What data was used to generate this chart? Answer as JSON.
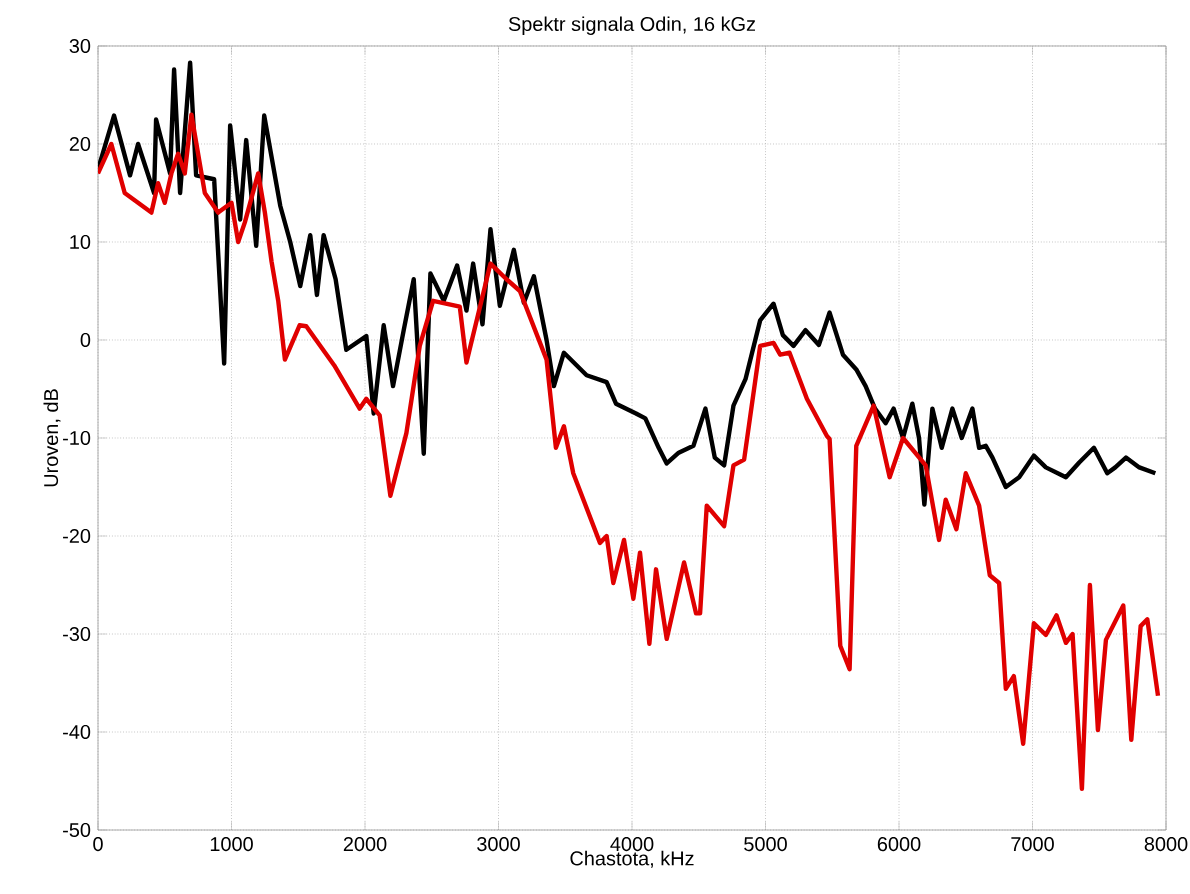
{
  "chart_data": {
    "type": "line",
    "title": "Spektr signala  Odin, 16 kGz",
    "xlabel": "Chastota, kHz",
    "ylabel": "Uroven, dB",
    "xlim": [
      0,
      8000
    ],
    "ylim": [
      -50,
      30
    ],
    "xticks": [
      0,
      1000,
      2000,
      3000,
      4000,
      5000,
      6000,
      7000,
      8000
    ],
    "yticks": [
      -50,
      -40,
      -30,
      -20,
      -10,
      0,
      10,
      20,
      30
    ],
    "grid": true,
    "series": [
      {
        "color": "#000000",
        "x": [
          0,
          120,
          240,
          300,
          420,
          435,
          540,
          570,
          615,
          690,
          735,
          870,
          945,
          990,
          1065,
          1110,
          1185,
          1245,
          1365,
          1440,
          1515,
          1590,
          1640,
          1690,
          1780,
          1860,
          2010,
          2065,
          2140,
          2210,
          2290,
          2365,
          2440,
          2490,
          2590,
          2690,
          2760,
          2810,
          2880,
          2940,
          3010,
          3115,
          3190,
          3265,
          3360,
          3415,
          3490,
          3660,
          3810,
          3880,
          4030,
          4100,
          4200,
          4260,
          4350,
          4460,
          4550,
          4620,
          4690,
          4760,
          4850,
          4960,
          5060,
          5130,
          5210,
          5300,
          5400,
          5480,
          5580,
          5680,
          5750,
          5820,
          5900,
          5960,
          6030,
          6100,
          6150,
          6190,
          6250,
          6320,
          6400,
          6470,
          6550,
          6600,
          6650,
          6700,
          6800,
          6900,
          7010,
          7100,
          7250,
          7350,
          7460,
          7560,
          7620,
          7700,
          7800,
          7920
        ],
        "values": [
          17.4,
          22.9,
          16.8,
          20,
          15,
          22.5,
          17,
          27.6,
          15,
          28.3,
          16.8,
          16.4,
          -2.4,
          21.9,
          12.3,
          20.4,
          9.6,
          22.9,
          13.7,
          10,
          5.5,
          10.7,
          4.6,
          10.7,
          6.2,
          -1,
          0.4,
          -7.5,
          1.5,
          -4.7,
          1,
          6.2,
          -11.6,
          6.8,
          4,
          7.6,
          3,
          7.8,
          1.6,
          11.3,
          3.5,
          9.2,
          3.8,
          6.5,
          0,
          -4.7,
          -1.3,
          -3.6,
          -4.3,
          -6.5,
          -7.5,
          -8,
          -11,
          -12.6,
          -11.5,
          -10.8,
          -7,
          -12,
          -12.8,
          -6.7,
          -4,
          2,
          3.7,
          0.5,
          -0.6,
          1,
          -0.5,
          2.8,
          -1.5,
          -3,
          -4.7,
          -7,
          -8.5,
          -7,
          -10,
          -6.5,
          -10,
          -16.8,
          -7,
          -11,
          -7,
          -10,
          -7,
          -11,
          -10.8,
          -12,
          -15,
          -14,
          -11.8,
          -13,
          -14,
          -12.5,
          -11,
          -13.6,
          -13,
          -12,
          -13,
          -13.6
        ]
      },
      {
        "color": "#e00000",
        "x": [
          0,
          100,
          200,
          300,
          400,
          450,
          500,
          550,
          600,
          650,
          700,
          750,
          800,
          900,
          1000,
          1050,
          1100,
          1200,
          1250,
          1300,
          1350,
          1400,
          1510,
          1560,
          1770,
          1960,
          2010,
          2110,
          2190,
          2310,
          2410,
          2510,
          2710,
          2760,
          2940,
          3060,
          3160,
          3360,
          3430,
          3490,
          3560,
          3760,
          3810,
          3860,
          3940,
          4010,
          4060,
          4130,
          4180,
          4260,
          4390,
          4480,
          4510,
          4560,
          4690,
          4760,
          4840,
          4960,
          5060,
          5110,
          5180,
          5310,
          5460,
          5480,
          5560,
          5630,
          5680,
          5810,
          5930,
          6030,
          6200,
          6300,
          6350,
          6430,
          6500,
          6600,
          6680,
          6750,
          6800,
          6860,
          6930,
          7010,
          7100,
          7180,
          7250,
          7300,
          7370,
          7430,
          7490,
          7550,
          7680,
          7740,
          7810,
          7860,
          7940
        ],
        "values": [
          17,
          20,
          15,
          14,
          13,
          16,
          14,
          17,
          19,
          17,
          23,
          19,
          15,
          13,
          14,
          10,
          12,
          17,
          13,
          8,
          4,
          -2,
          1.5,
          1.4,
          -2.6,
          -7,
          -6,
          -7.7,
          -15.9,
          -9.5,
          -0.6,
          4,
          3.4,
          -2.3,
          7.8,
          6.2,
          5,
          -2,
          -11,
          -8.8,
          -13.6,
          -20.7,
          -20,
          -24.8,
          -20.4,
          -26.4,
          -21.7,
          -31,
          -23.4,
          -30.5,
          -22.7,
          -27.9,
          -27.9,
          -16.9,
          -19,
          -12.8,
          -12.2,
          -0.6,
          -0.3,
          -1.5,
          -1.3,
          -6,
          -9.8,
          -10.1,
          -31.2,
          -33.6,
          -10.8,
          -6.7,
          -14,
          -10,
          -12.8,
          -20.4,
          -16.3,
          -19.3,
          -13.6,
          -16.9,
          -24,
          -24.8,
          -35.6,
          -34.3,
          -41.2,
          -28.9,
          -30.1,
          -28.1,
          -30.9,
          -30,
          -45.8,
          -25,
          -39.8,
          -30.6,
          -27.1,
          -40.8,
          -29.2,
          -28.5,
          -36.3
        ]
      }
    ]
  }
}
